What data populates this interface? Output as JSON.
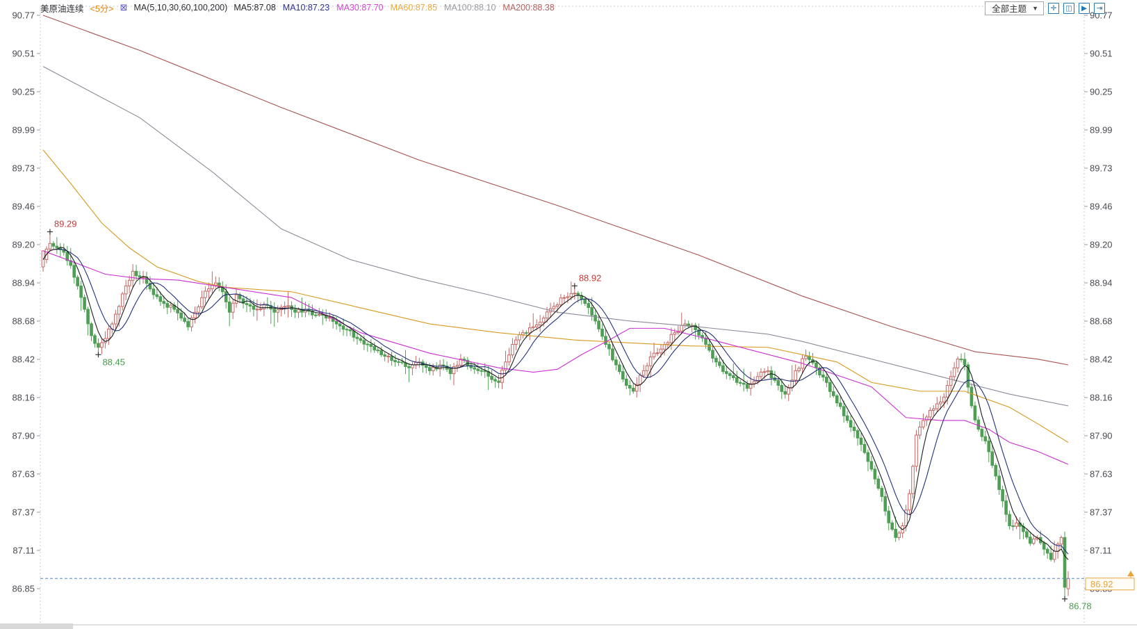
{
  "header": {
    "symbol": "美原油连续",
    "period": "<5分>",
    "ma_settings_icon_glyph": "⊠",
    "ma_group_label": "MA(5,10,30,60,100,200)",
    "ma_values": [
      {
        "label": "MA5:87.08",
        "color": "#2a2a2e"
      },
      {
        "label": "MA10:87.23",
        "color": "#2e3192"
      },
      {
        "label": "MA30:87.70",
        "color": "#d145d1"
      },
      {
        "label": "MA60:87.85",
        "color": "#eda83e"
      },
      {
        "label": "MA100:88.10",
        "color": "#9a9aa2"
      },
      {
        "label": "MA200:88.38",
        "color": "#b4605c"
      }
    ]
  },
  "toolbar": {
    "theme_dropdown_label": "全部主题",
    "caret_glyph": "▼",
    "buttons": [
      {
        "name": "pan-tool-button",
        "glyph": "✛"
      },
      {
        "name": "zoom-region-button",
        "glyph": "◫"
      },
      {
        "name": "scroll-right-button",
        "glyph": "▶"
      },
      {
        "name": "jump-to-latest-button",
        "glyph": "⇥"
      }
    ]
  },
  "chart_data": {
    "type": "candlestick",
    "title": "美原油连续 5分 K线",
    "timeframe": "5分",
    "grid": "off",
    "legend_position": "top-left",
    "y_ticks": [
      "90.77",
      "90.51",
      "90.25",
      "89.99",
      "89.73",
      "89.46",
      "89.20",
      "88.94",
      "88.68",
      "88.42",
      "88.16",
      "87.90",
      "87.63",
      "87.37",
      "87.11",
      "86.85"
    ],
    "y_range": [
      86.85,
      90.77
    ],
    "n_candles": 298,
    "close_anchors": [
      [
        0,
        89.1
      ],
      [
        2,
        89.21
      ],
      [
        4,
        89.18
      ],
      [
        6,
        89.15
      ],
      [
        8,
        89.06
      ],
      [
        10,
        88.92
      ],
      [
        12,
        88.76
      ],
      [
        14,
        88.58
      ],
      [
        16,
        88.5
      ],
      [
        18,
        88.56
      ],
      [
        20,
        88.66
      ],
      [
        22,
        88.78
      ],
      [
        24,
        88.92
      ],
      [
        26,
        89.02
      ],
      [
        29,
        88.98
      ],
      [
        32,
        88.86
      ],
      [
        35,
        88.8
      ],
      [
        38,
        88.76
      ],
      [
        40,
        88.7
      ],
      [
        42,
        88.64
      ],
      [
        44,
        88.74
      ],
      [
        46,
        88.84
      ],
      [
        48,
        88.9
      ],
      [
        50,
        88.94
      ],
      [
        52,
        88.88
      ],
      [
        54,
        88.74
      ],
      [
        56,
        88.86
      ],
      [
        58,
        88.8
      ],
      [
        61,
        88.76
      ],
      [
        64,
        88.79
      ],
      [
        67,
        88.74
      ],
      [
        70,
        88.78
      ],
      [
        73,
        88.74
      ],
      [
        76,
        88.76
      ],
      [
        79,
        88.72
      ],
      [
        82,
        88.7
      ],
      [
        85,
        88.66
      ],
      [
        88,
        88.62
      ],
      [
        91,
        88.56
      ],
      [
        94,
        88.52
      ],
      [
        97,
        88.48
      ],
      [
        100,
        88.44
      ],
      [
        103,
        88.4
      ],
      [
        106,
        88.36
      ],
      [
        109,
        88.4
      ],
      [
        112,
        88.34
      ],
      [
        115,
        88.38
      ],
      [
        118,
        88.32
      ],
      [
        121,
        88.42
      ],
      [
        124,
        88.36
      ],
      [
        127,
        88.34
      ],
      [
        130,
        88.28
      ],
      [
        132,
        88.26
      ],
      [
        134,
        88.4
      ],
      [
        136,
        88.52
      ],
      [
        139,
        88.6
      ],
      [
        142,
        88.64
      ],
      [
        145,
        88.7
      ],
      [
        148,
        88.78
      ],
      [
        151,
        88.84
      ],
      [
        154,
        88.87
      ],
      [
        157,
        88.8
      ],
      [
        160,
        88.68
      ],
      [
        163,
        88.52
      ],
      [
        166,
        88.38
      ],
      [
        169,
        88.24
      ],
      [
        171,
        88.2
      ],
      [
        174,
        88.34
      ],
      [
        177,
        88.46
      ],
      [
        180,
        88.52
      ],
      [
        183,
        88.6
      ],
      [
        186,
        88.66
      ],
      [
        189,
        88.62
      ],
      [
        192,
        88.52
      ],
      [
        195,
        88.4
      ],
      [
        198,
        88.32
      ],
      [
        201,
        88.26
      ],
      [
        204,
        88.22
      ],
      [
        207,
        88.3
      ],
      [
        210,
        88.34
      ],
      [
        213,
        88.24
      ],
      [
        215,
        88.18
      ],
      [
        218,
        88.34
      ],
      [
        221,
        88.44
      ],
      [
        224,
        88.36
      ],
      [
        227,
        88.26
      ],
      [
        230,
        88.12
      ],
      [
        233,
        88.0
      ],
      [
        236,
        87.88
      ],
      [
        239,
        87.72
      ],
      [
        241,
        87.6
      ],
      [
        243,
        87.48
      ],
      [
        245,
        87.3
      ],
      [
        247,
        87.2
      ],
      [
        249,
        87.28
      ],
      [
        251,
        87.5
      ],
      [
        253,
        87.9
      ],
      [
        255,
        88.0
      ],
      [
        258,
        88.08
      ],
      [
        261,
        88.16
      ],
      [
        263,
        88.3
      ],
      [
        265,
        88.42
      ],
      [
        267,
        88.38
      ],
      [
        269,
        88.1
      ],
      [
        271,
        87.94
      ],
      [
        273,
        87.86
      ],
      [
        276,
        87.62
      ],
      [
        278,
        87.45
      ],
      [
        280,
        87.28
      ],
      [
        282,
        87.3
      ],
      [
        284,
        87.24
      ],
      [
        286,
        87.16
      ],
      [
        288,
        87.2
      ],
      [
        290,
        87.12
      ],
      [
        292,
        87.05
      ],
      [
        295,
        87.2
      ],
      [
        296,
        86.86
      ],
      [
        297,
        86.92
      ]
    ],
    "candle_overrides": {
      "0": {
        "o": 89.05,
        "c": 89.16
      },
      "2": {
        "h": 89.29
      },
      "16": {
        "l": 88.45
      },
      "154": {
        "h": 88.92
      },
      "296": {
        "o": 87.2,
        "c": 86.86,
        "h": 87.24,
        "l": 86.78
      },
      "297": {
        "o": 86.85,
        "c": 86.92,
        "h": 86.97,
        "l": 86.8
      }
    },
    "annotations": [
      {
        "index": 2,
        "price": 89.29,
        "text": "89.29",
        "kind": "high"
      },
      {
        "index": 16,
        "price": 88.45,
        "text": "88.45",
        "kind": "low"
      },
      {
        "index": 154,
        "price": 88.92,
        "text": "88.92",
        "kind": "high"
      },
      {
        "index": 296,
        "price": 86.78,
        "text": "86.78",
        "kind": "low"
      }
    ],
    "last_price": 86.92,
    "last_price_label": "86.92",
    "ma_series": [
      {
        "name": "MA5",
        "color": "#1c1c1c",
        "compute_window": 5
      },
      {
        "name": "MA10",
        "color": "#23307f",
        "compute_window": 10
      },
      {
        "name": "MA30",
        "color": "#cb2fd3",
        "points": [
          [
            0,
            89.16
          ],
          [
            8,
            89.09
          ],
          [
            18,
            89.0
          ],
          [
            28,
            88.97
          ],
          [
            39,
            88.96
          ],
          [
            50,
            88.92
          ],
          [
            72,
            88.84
          ],
          [
            92,
            88.6
          ],
          [
            112,
            88.46
          ],
          [
            132,
            88.36
          ],
          [
            142,
            88.33
          ],
          [
            149,
            88.35
          ],
          [
            156,
            88.45
          ],
          [
            164,
            88.55
          ],
          [
            170,
            88.63
          ],
          [
            180,
            88.63
          ],
          [
            194,
            88.55
          ],
          [
            207,
            88.47
          ],
          [
            220,
            88.39
          ],
          [
            240,
            88.23
          ],
          [
            250,
            88.02
          ],
          [
            260,
            88.0
          ],
          [
            267,
            88.0
          ],
          [
            274,
            87.94
          ],
          [
            280,
            87.85
          ],
          [
            288,
            87.79
          ],
          [
            297,
            87.7
          ]
        ]
      },
      {
        "name": "MA60",
        "color": "#d8991f",
        "points": [
          [
            0,
            89.85
          ],
          [
            8,
            89.62
          ],
          [
            17,
            89.35
          ],
          [
            25,
            89.18
          ],
          [
            33,
            89.05
          ],
          [
            45,
            88.95
          ],
          [
            53,
            88.91
          ],
          [
            72,
            88.88
          ],
          [
            92,
            88.77
          ],
          [
            112,
            88.66
          ],
          [
            132,
            88.6
          ],
          [
            154,
            88.55
          ],
          [
            187,
            88.51
          ],
          [
            210,
            88.5
          ],
          [
            230,
            88.4
          ],
          [
            240,
            88.26
          ],
          [
            254,
            88.2
          ],
          [
            267,
            88.2
          ],
          [
            280,
            88.09
          ],
          [
            288,
            87.98
          ],
          [
            297,
            87.85
          ]
        ]
      },
      {
        "name": "MA100",
        "color": "#8b8b98",
        "points": [
          [
            0,
            90.42
          ],
          [
            28,
            90.07
          ],
          [
            49,
            89.7
          ],
          [
            69,
            89.31
          ],
          [
            89,
            89.1
          ],
          [
            109,
            88.97
          ],
          [
            129,
            88.86
          ],
          [
            149,
            88.74
          ],
          [
            170,
            88.68
          ],
          [
            190,
            88.64
          ],
          [
            210,
            88.59
          ],
          [
            220,
            88.54
          ],
          [
            240,
            88.42
          ],
          [
            260,
            88.3
          ],
          [
            280,
            88.18
          ],
          [
            297,
            88.1
          ]
        ]
      },
      {
        "name": "MA200",
        "color": "#a8524e",
        "points": [
          [
            0,
            90.77
          ],
          [
            28,
            90.53
          ],
          [
            69,
            90.14
          ],
          [
            109,
            89.78
          ],
          [
            149,
            89.47
          ],
          [
            190,
            89.13
          ],
          [
            220,
            88.85
          ],
          [
            246,
            88.64
          ],
          [
            270,
            88.47
          ],
          [
            288,
            88.42
          ],
          [
            297,
            88.38
          ]
        ]
      }
    ],
    "colors": {
      "up_candle": "#c26763",
      "down_candle": "#4f9e55",
      "axis_text": "#4a4a52",
      "border": "#c9cbd4",
      "last_price_line": "#4a86c8",
      "last_price_box": "#e8a33d",
      "high_label": "#c13b38",
      "low_label": "#4a9a4f",
      "marker_cross": "#333333"
    }
  }
}
